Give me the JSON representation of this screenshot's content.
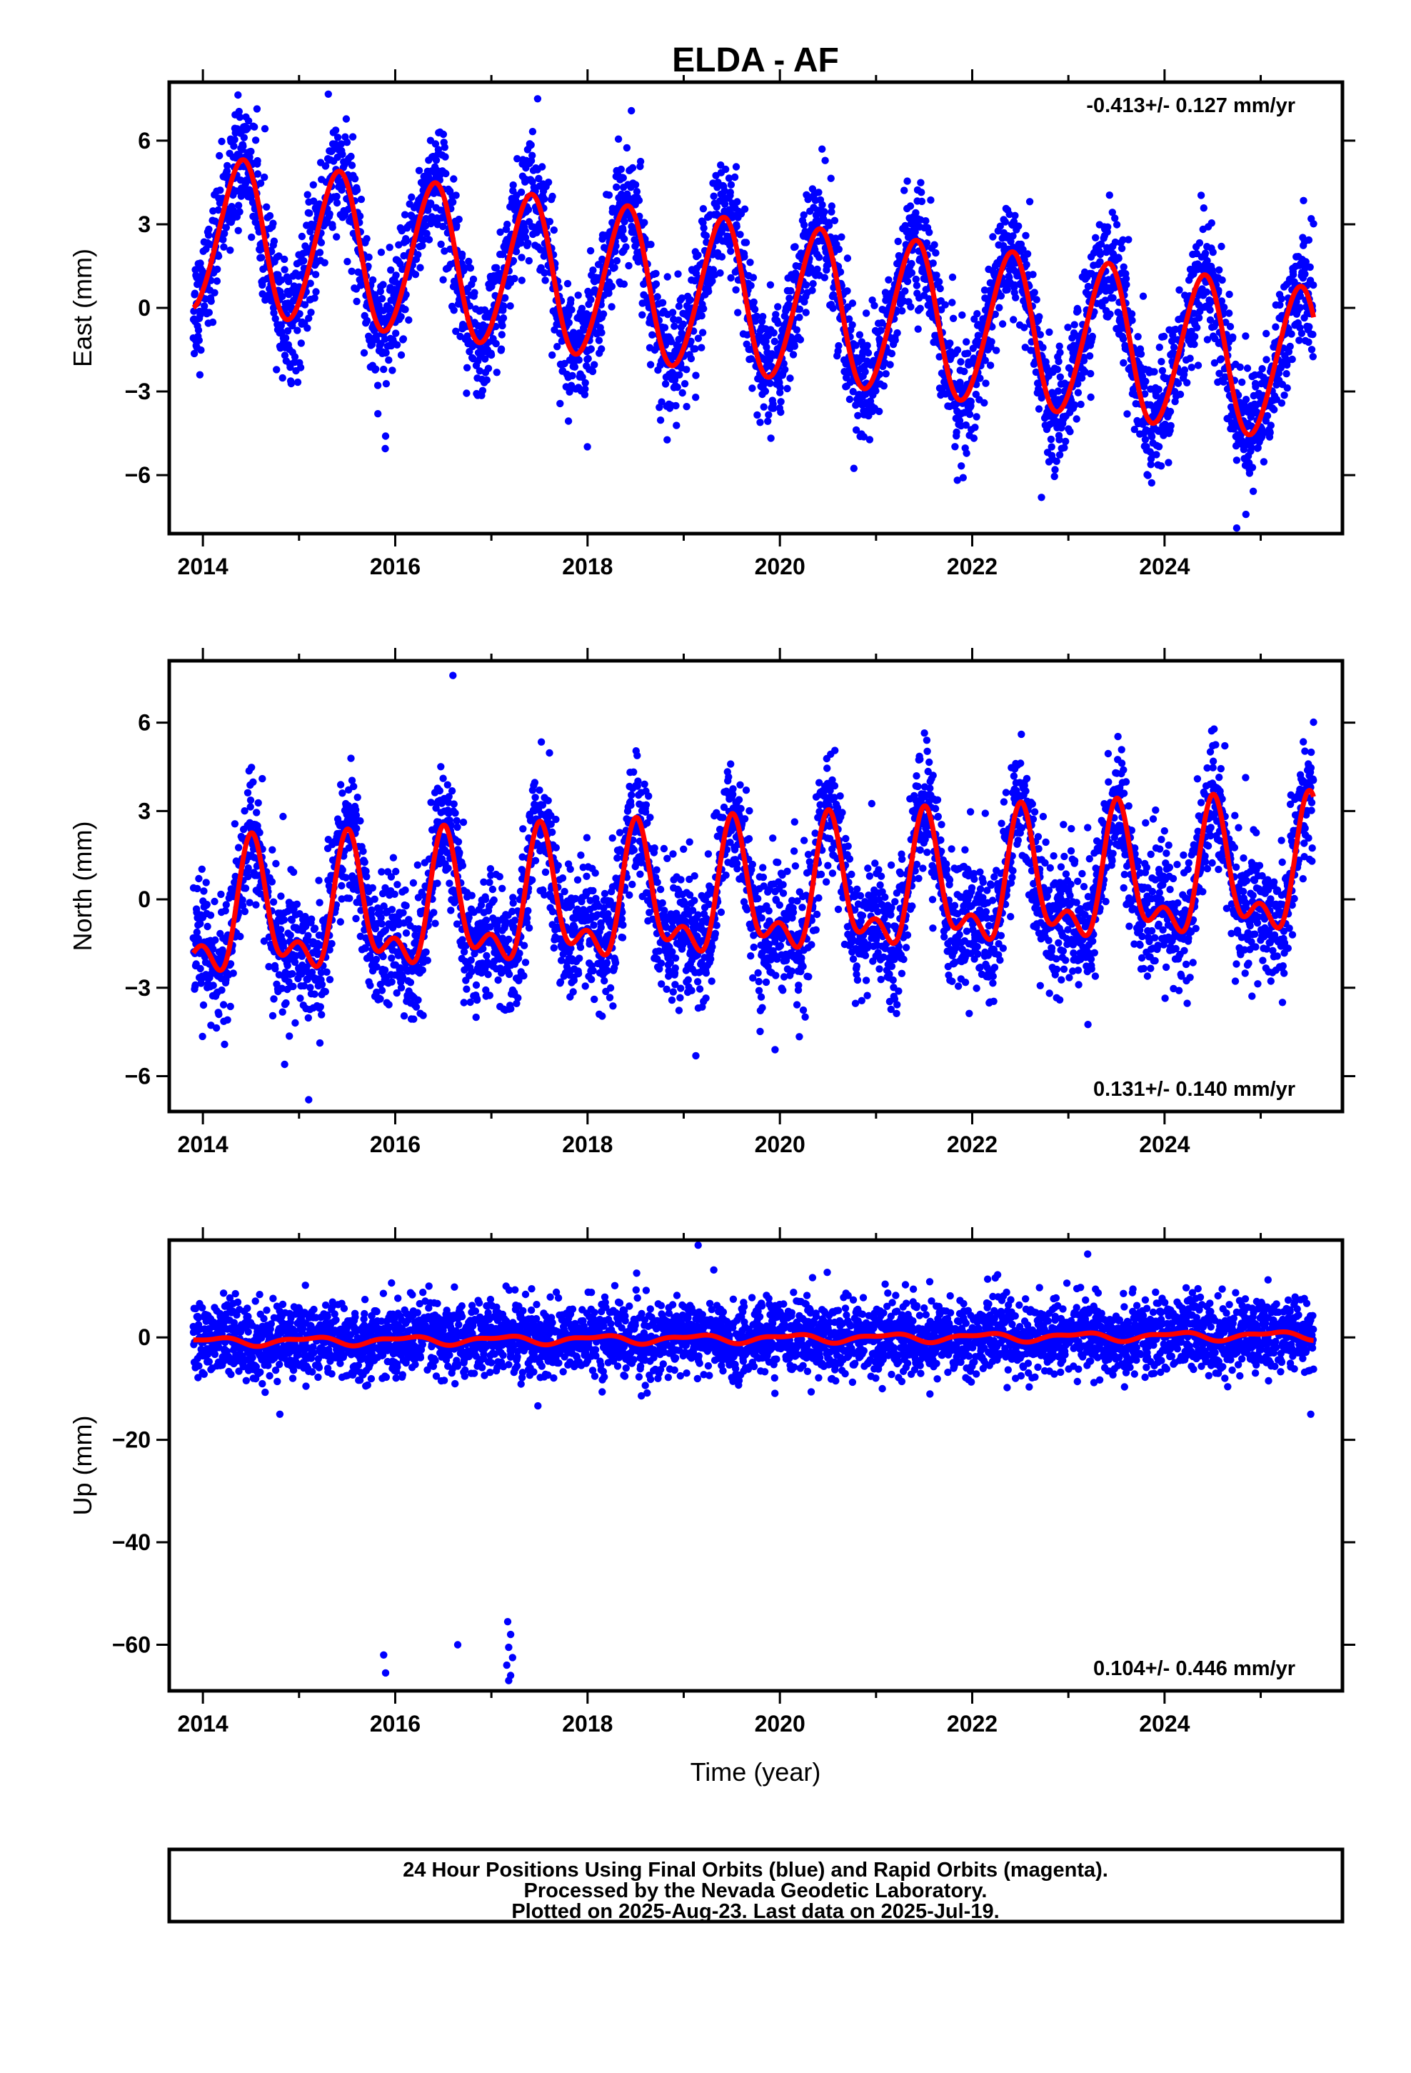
{
  "title": "ELDA - AF",
  "xlabel": "Time (year)",
  "colors": {
    "points": "#0000ff",
    "fit": "#ff0000",
    "frame": "#000000",
    "background": "#ffffff"
  },
  "footer": {
    "line1": "24 Hour Positions Using Final Orbits (blue) and Rapid Orbits (magenta).",
    "line2": "Processed by the Nevada Geodetic Laboratory.",
    "line3": "Plotted on 2025-Aug-23. Last data on 2025-Jul-19."
  },
  "chart_data": [
    {
      "type": "scatter",
      "panel": "east",
      "ylabel": "East (mm)",
      "rate_text": "-0.413+/- 0.127 mm/yr",
      "rate_position": "top-right",
      "xlim": [
        2013.65,
        2025.85
      ],
      "ylim": [
        -8.1,
        8.1
      ],
      "xticks": [
        2014,
        2016,
        2018,
        2020,
        2022,
        2024
      ],
      "yticks": [
        -6,
        -3,
        0,
        3,
        6
      ],
      "data_range": [
        2013.9,
        2025.55
      ],
      "trend": {
        "offset": 0.3,
        "rate": -0.413,
        "reference_year": 2019.7
      },
      "seasonal": [
        {
          "period_years": 1,
          "amplitude": 2.75,
          "phase_year": 2014.4
        },
        {
          "period_years": 0.5,
          "amplitude": 0.2,
          "phase_year": 2014.5
        }
      ],
      "scatter_sd": 1.05,
      "outliers": [
        [
          2015.82,
          -3.8
        ],
        [
          2015.9,
          -4.6
        ],
        [
          2024.75,
          -7.9
        ],
        [
          2022.72,
          -6.8
        ]
      ],
      "series": [
        {
          "name": "24 Hour Positions Using Final Orbits (blue)",
          "kind": "points"
        },
        {
          "name": "fit",
          "kind": "line"
        }
      ]
    },
    {
      "type": "scatter",
      "panel": "north",
      "ylabel": "North (mm)",
      "rate_text": "0.131+/- 0.140 mm/yr",
      "rate_position": "bottom-right",
      "xlim": [
        2013.65,
        2025.85
      ],
      "ylim": [
        -7.2,
        8.1
      ],
      "xticks": [
        2014,
        2016,
        2018,
        2020,
        2022,
        2024
      ],
      "yticks": [
        -6,
        -3,
        0,
        3,
        6
      ],
      "data_range": [
        2013.9,
        2025.55
      ],
      "trend": {
        "offset": 0.0,
        "rate": 0.131,
        "reference_year": 2019.7
      },
      "seasonal": [
        {
          "period_years": 1,
          "amplitude": 1.9,
          "phase_year": 2014.52
        },
        {
          "period_years": 0.5,
          "amplitude": 1.05,
          "phase_year": 2014.5
        }
      ],
      "scatter_sd": 1.1,
      "outliers": [
        [
          2016.6,
          7.6
        ],
        [
          2015.1,
          -6.8
        ],
        [
          2019.95,
          -5.1
        ],
        [
          2014.85,
          -5.6
        ]
      ],
      "series": [
        {
          "name": "24 Hour Positions Using Final Orbits (blue)",
          "kind": "points"
        },
        {
          "name": "fit",
          "kind": "line"
        }
      ]
    },
    {
      "type": "scatter",
      "panel": "up",
      "ylabel": "Up (mm)",
      "rate_text": "0.104+/- 0.446 mm/yr",
      "rate_position": "bottom-right",
      "xlim": [
        2013.65,
        2025.85
      ],
      "ylim": [
        -69,
        19
      ],
      "xticks": [
        2014,
        2016,
        2018,
        2020,
        2022,
        2024
      ],
      "yticks": [
        -60,
        -40,
        -20,
        0
      ],
      "data_range": [
        2013.9,
        2025.55
      ],
      "trend": {
        "offset": -0.2,
        "rate": 0.104,
        "reference_year": 2019.7
      },
      "seasonal": [
        {
          "period_years": 1,
          "amplitude": 0.7,
          "phase_year": 2014.1
        },
        {
          "period_years": 0.5,
          "amplitude": 0.35,
          "phase_year": 2014.3
        }
      ],
      "scatter_sd": 3.6,
      "outliers": [
        [
          2015.88,
          -62
        ],
        [
          2015.9,
          -65.5
        ],
        [
          2016.65,
          -60
        ],
        [
          2017.17,
          -55.5
        ],
        [
          2017.2,
          -58
        ],
        [
          2017.18,
          -60.5
        ],
        [
          2017.22,
          -62.5
        ],
        [
          2017.16,
          -64
        ],
        [
          2017.2,
          -66
        ],
        [
          2017.18,
          -67
        ],
        [
          2019.15,
          18
        ],
        [
          2014.8,
          -15
        ],
        [
          2025.52,
          -15
        ]
      ],
      "series": [
        {
          "name": "24 Hour Positions Using Final Orbits (blue)",
          "kind": "points"
        },
        {
          "name": "fit",
          "kind": "line"
        }
      ]
    }
  ]
}
